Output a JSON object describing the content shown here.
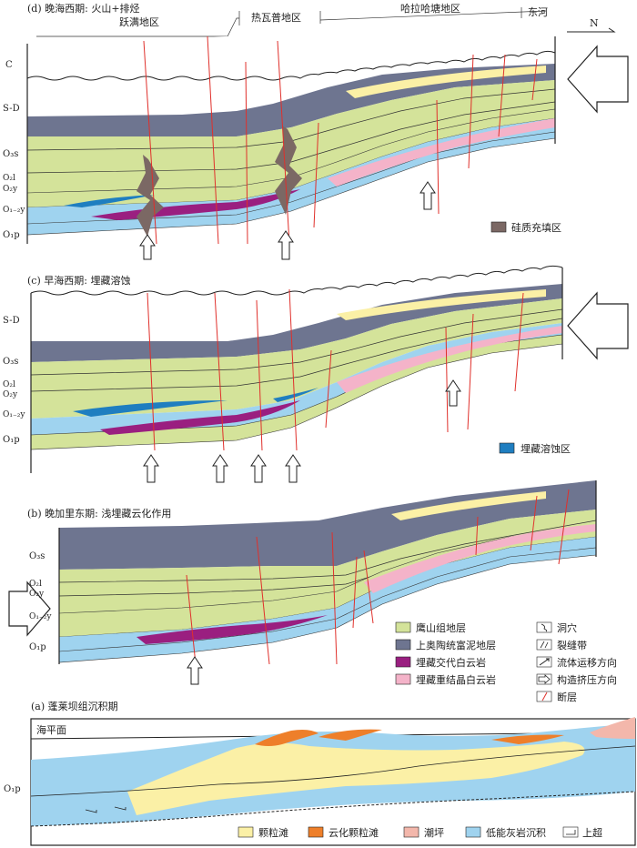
{
  "panels": {
    "d": {
      "title": "(d) 晚海西期: 火山+排烃",
      "regions": [
        "跃满地区",
        "热瓦普地区",
        "哈拉哈塘地区",
        "东河"
      ],
      "north": "N",
      "strata": [
        "C",
        "S-D",
        "O₃s",
        "O₂l",
        "O₂y",
        "O₁₋₂y",
        "O₁p"
      ],
      "legend": "硅质充填区"
    },
    "c": {
      "title": "(c) 早海西期: 埋藏溶蚀",
      "strata": [
        "S-D",
        "O₃s",
        "O₂l",
        "O₂y",
        "O₁₋₂y",
        "O₁p"
      ],
      "legend": "埋藏溶蚀区"
    },
    "b": {
      "title": "(b) 晚加里东期: 浅埋藏云化作用",
      "strata": [
        "O₃s",
        "O₂l",
        "O₂y",
        "O₁₋₂y",
        "O₁p"
      ],
      "legend": [
        "鹰山组地层",
        "上奥陶统富泥地层",
        "埋藏交代白云岩",
        "埋藏重结晶白云岩",
        "洞穴",
        "裂缝带",
        "流体运移方向",
        "构造挤压方向",
        "断层"
      ]
    },
    "a": {
      "title": "(a) 蓬莱坝组沉积期",
      "sea_level": "海平面",
      "strata": [
        "O₁p"
      ],
      "legend": [
        "颗粒滩",
        "云化颗粒滩",
        "潮坪",
        "低能灰岩沉积",
        "上超"
      ]
    }
  },
  "colors": {
    "yingshan": "#d4e39a",
    "mudstone": "#6e7590",
    "replacive_dolomite": "#9a1f80",
    "recrystallized_dolomite": "#f4b3c9",
    "silica": "#7b6864",
    "dissolution": "#1f7ec0",
    "limestone": "#9fd3ef",
    "grain_shoal": "#fbf0a6",
    "dolomitized_shoal": "#ee7f2a",
    "tidal_flat": "#f3b7ab",
    "fault": "#e0302b"
  }
}
